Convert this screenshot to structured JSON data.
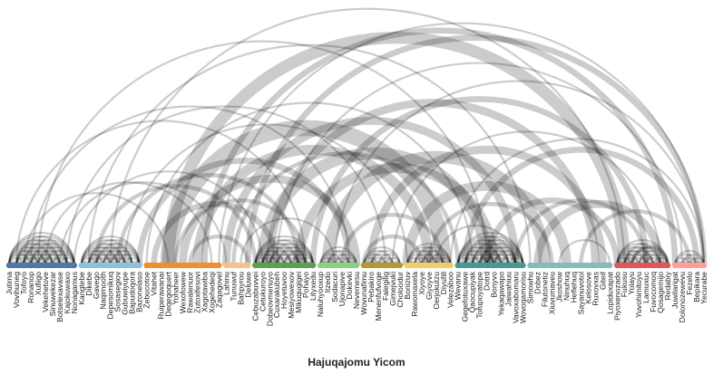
{
  "chart_data": {
    "type": "arc",
    "title": "",
    "xlabel": "Hajuqajomu Yicom",
    "groups": [
      {
        "color": "#4e79a7",
        "nodes": [
          "Jutima",
          "Vovihuneg",
          "Tofoyo",
          "Ronanop",
          "Xufiigo",
          "Vekehetove",
          "Sinuwekezar",
          "Botselexavase",
          "Kajokuwaxo",
          "Nonagamus"
        ]
      },
      {
        "color": "#8cc0de",
        "nodes": [
          "Kangtebe",
          "Dikebe",
          "Gavego",
          "Naqimooth",
          "Depesomikuq",
          "Sosasegiov",
          "Gubuwiyupe",
          "Bapudoqora",
          "Bazonelaso"
        ]
      },
      {
        "color": "#f28e2b",
        "nodes": [
          "Zebucotoe",
          "Vitahet",
          "Ruiperawanai",
          "Deqegoquert",
          "Yohaheer",
          "Wexofowew",
          "Rawalenuor",
          "Zutoxifesovi",
          "Xagotawiba",
          "Xogehedeqi",
          "Zaqagovel"
        ]
      },
      {
        "color": "#f4c28f",
        "nodes": [
          "Lahinu",
          "Tunuwuf",
          "Bahpyrou",
          "Deluwe"
        ]
      },
      {
        "color": "#59a14f",
        "nodes": [
          "Cebuzabuvvei",
          "Cetukuroyo",
          "Dobeovmenuyo",
          "Cuxarakubeh",
          "Hoyetuvoo",
          "Mesiyowexov",
          "Mikuqugigei",
          "Pohayo",
          "Lityxedu"
        ]
      },
      {
        "color": "#8cd17d",
        "nodes": [
          "Naluhyooxup",
          "Itzedo",
          "Sodacuri",
          "Ujonapive",
          "Dokevki",
          "Nevemesu"
        ]
      },
      {
        "color": "#b6992d",
        "nodes": [
          "Wovunafimu",
          "Pebakiro",
          "Menenfufvoge",
          "Falegilig",
          "Gimejvuki",
          "Choloodur"
        ]
      },
      {
        "color": "#f1ce63",
        "nodes": [
          "Bonizuv",
          "Rawomaxela",
          "Xiyoye",
          "Giyoyve",
          "Oerjokutzu",
          "Diyufill",
          "Velezaboo"
        ]
      },
      {
        "color": "#499894",
        "nodes": [
          "Wevanu",
          "Gegefotuxawe",
          "Qaocupiyak",
          "Tofupoyatope",
          "Dotrd",
          "Bonyvo",
          "Yekaqawapo",
          "Jaiwahiuu",
          "Vavoxabomaru",
          "Wovoqamorisu"
        ]
      },
      {
        "color": "#86bcb6",
        "nodes": [
          "Simowhu",
          "Dobez",
          "Filutonetiz",
          "Xiuvumaveu",
          "Jkoshow",
          "Ninuhuq",
          "Heflehuq",
          "Sayanuvotol",
          "Kelosove",
          "Ruxovxas",
          "Giteif",
          "Lopiduxapat"
        ]
      },
      {
        "color": "#e15759",
        "nodes": [
          "Piyoxenozado",
          "Fukusu",
          "Yolayu",
          "Yuvohimitoyu",
          "Lamuxuc",
          "Fuvocomoq",
          "Qosagemijo",
          "Redabiy"
        ]
      },
      {
        "color": "#ff9d9a",
        "nodes": [
          "Juwilarigat",
          "Dolonozewevu",
          "Fezelo",
          "Bepikara",
          "Yecurabe"
        ]
      }
    ],
    "links": [
      {
        "source": 5,
        "target": 28,
        "value": 1
      },
      {
        "source": 2,
        "target": 22,
        "value": 1
      },
      {
        "source": 7,
        "target": 30,
        "value": 1
      },
      {
        "source": 9,
        "target": 35,
        "value": 1
      },
      {
        "source": 12,
        "target": 34,
        "value": 2
      },
      {
        "source": 15,
        "target": 40,
        "value": 2
      },
      {
        "source": 18,
        "target": 47,
        "value": 3
      },
      {
        "source": 20,
        "target": 37,
        "value": 3
      },
      {
        "source": 22,
        "target": 60,
        "value": 8
      },
      {
        "source": 22,
        "target": 85,
        "value": 6
      },
      {
        "source": 24,
        "target": 48,
        "value": 4
      },
      {
        "source": 26,
        "target": 58,
        "value": 5
      },
      {
        "source": 27,
        "target": 92,
        "value": 3
      },
      {
        "source": 30,
        "target": 70,
        "value": 4
      },
      {
        "source": 31,
        "target": 62,
        "value": 2
      },
      {
        "source": 33,
        "target": 99,
        "value": 3
      },
      {
        "source": 35,
        "target": 66,
        "value": 6
      },
      {
        "source": 36,
        "target": 81,
        "value": 4
      },
      {
        "source": 40,
        "target": 67,
        "value": 5
      },
      {
        "source": 42,
        "target": 88,
        "value": 3
      },
      {
        "source": 44,
        "target": 74,
        "value": 6
      },
      {
        "source": 46,
        "target": 60,
        "value": 2
      },
      {
        "source": 50,
        "target": 82,
        "value": 4
      },
      {
        "source": 55,
        "target": 77,
        "value": 5
      },
      {
        "source": 58,
        "target": 75,
        "value": 2
      },
      {
        "source": 63,
        "target": 95,
        "value": 3
      },
      {
        "source": 66,
        "target": 84,
        "value": 3
      },
      {
        "source": 70,
        "target": 88,
        "value": 2
      },
      {
        "source": 73,
        "target": 90,
        "value": 4
      },
      {
        "source": 79,
        "target": 94,
        "value": 2
      },
      {
        "source": 3,
        "target": 47,
        "value": 1
      },
      {
        "source": 4,
        "target": 66,
        "value": 1
      },
      {
        "source": 11,
        "target": 72,
        "value": 1
      },
      {
        "source": 14,
        "target": 85,
        "value": 1
      },
      {
        "source": 8,
        "target": 52,
        "value": 1
      },
      {
        "source": 19,
        "target": 64,
        "value": 1
      },
      {
        "source": 29,
        "target": 96,
        "value": 1
      },
      {
        "source": 37,
        "target": 93,
        "value": 1
      },
      {
        "source": 45,
        "target": 97,
        "value": 1
      },
      {
        "source": 53,
        "target": 90,
        "value": 1
      },
      {
        "source": 61,
        "target": 98,
        "value": 1
      },
      {
        "source": 1,
        "target": 41,
        "value": 1
      },
      {
        "source": 16,
        "target": 55,
        "value": 1
      },
      {
        "source": 23,
        "target": 41,
        "value": 2
      },
      {
        "source": 25,
        "target": 33,
        "value": 2
      },
      {
        "source": 49,
        "target": 57,
        "value": 2
      },
      {
        "source": 76,
        "target": 83,
        "value": 1
      },
      {
        "source": 86,
        "target": 91,
        "value": 2
      },
      {
        "source": 59,
        "target": 70,
        "value": 1
      },
      {
        "source": 32,
        "target": 45,
        "value": 1
      }
    ],
    "dense_clusters": [
      {
        "group": 0,
        "value": 1
      },
      {
        "group": 1,
        "value": 1
      },
      {
        "group": 4,
        "value": 1
      },
      {
        "group": 5,
        "value": 1
      },
      {
        "group": 6,
        "value": 1
      },
      {
        "group": 7,
        "value": 1
      },
      {
        "group": 8,
        "value": 1
      },
      {
        "group": 10,
        "value": 1
      },
      {
        "group": 11,
        "value": 1
      }
    ],
    "arc_color": "#000000",
    "grid": false,
    "legend": "none"
  }
}
